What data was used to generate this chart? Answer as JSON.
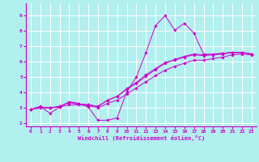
{
  "xlabel": "Windchill (Refroidissement éolien,°C)",
  "bg_color": "#b2efef",
  "line_color": "#cc00cc",
  "grid_color": "#ffffff",
  "xlim": [
    -0.5,
    23.5
  ],
  "ylim": [
    1.8,
    9.8
  ],
  "yticks": [
    2,
    3,
    4,
    5,
    6,
    7,
    8,
    9
  ],
  "xticks": [
    0,
    1,
    2,
    3,
    4,
    5,
    6,
    7,
    8,
    9,
    10,
    11,
    12,
    13,
    14,
    15,
    16,
    17,
    18,
    19,
    20,
    21,
    22,
    23
  ],
  "series": [
    {
      "x": [
        0,
        1,
        2,
        3,
        4,
        5,
        6,
        7,
        8,
        9,
        10,
        11,
        12,
        13,
        14,
        15,
        16,
        17,
        18,
        19,
        20,
        21,
        22,
        23
      ],
      "y": [
        2.9,
        3.1,
        2.65,
        3.05,
        3.4,
        3.3,
        3.05,
        2.2,
        2.2,
        2.35,
        4.05,
        5.0,
        6.6,
        8.35,
        9.0,
        8.05,
        8.5,
        7.85,
        6.5,
        6.45,
        6.55,
        6.6,
        6.6,
        6.5
      ]
    },
    {
      "x": [
        0,
        1,
        2,
        3,
        4,
        5,
        6,
        7,
        8,
        9,
        10,
        11,
        12,
        13,
        14,
        15,
        16,
        17,
        18,
        19,
        20,
        21,
        22,
        23
      ],
      "y": [
        2.9,
        3.05,
        3.0,
        3.1,
        3.35,
        3.25,
        3.2,
        3.1,
        3.5,
        3.75,
        4.2,
        4.6,
        5.05,
        5.5,
        5.9,
        6.15,
        6.35,
        6.5,
        6.45,
        6.5,
        6.55,
        6.6,
        6.6,
        6.5
      ]
    },
    {
      "x": [
        0,
        1,
        2,
        3,
        4,
        5,
        6,
        7,
        8,
        9,
        10,
        11,
        12,
        13,
        14,
        15,
        16,
        17,
        18,
        19,
        20,
        21,
        22,
        23
      ],
      "y": [
        2.9,
        3.05,
        3.0,
        3.1,
        3.35,
        3.25,
        3.2,
        3.1,
        3.5,
        3.75,
        4.25,
        4.65,
        5.15,
        5.55,
        5.95,
        6.1,
        6.3,
        6.45,
        6.4,
        6.45,
        6.5,
        6.6,
        6.6,
        6.5
      ]
    },
    {
      "x": [
        0,
        1,
        2,
        3,
        4,
        5,
        6,
        7,
        8,
        9,
        10,
        11,
        12,
        13,
        14,
        15,
        16,
        17,
        18,
        19,
        20,
        21,
        22,
        23
      ],
      "y": [
        2.9,
        3.0,
        3.0,
        3.05,
        3.2,
        3.2,
        3.15,
        3.0,
        3.3,
        3.5,
        3.9,
        4.3,
        4.7,
        5.1,
        5.45,
        5.7,
        5.9,
        6.1,
        6.1,
        6.2,
        6.3,
        6.45,
        6.5,
        6.45
      ]
    }
  ]
}
